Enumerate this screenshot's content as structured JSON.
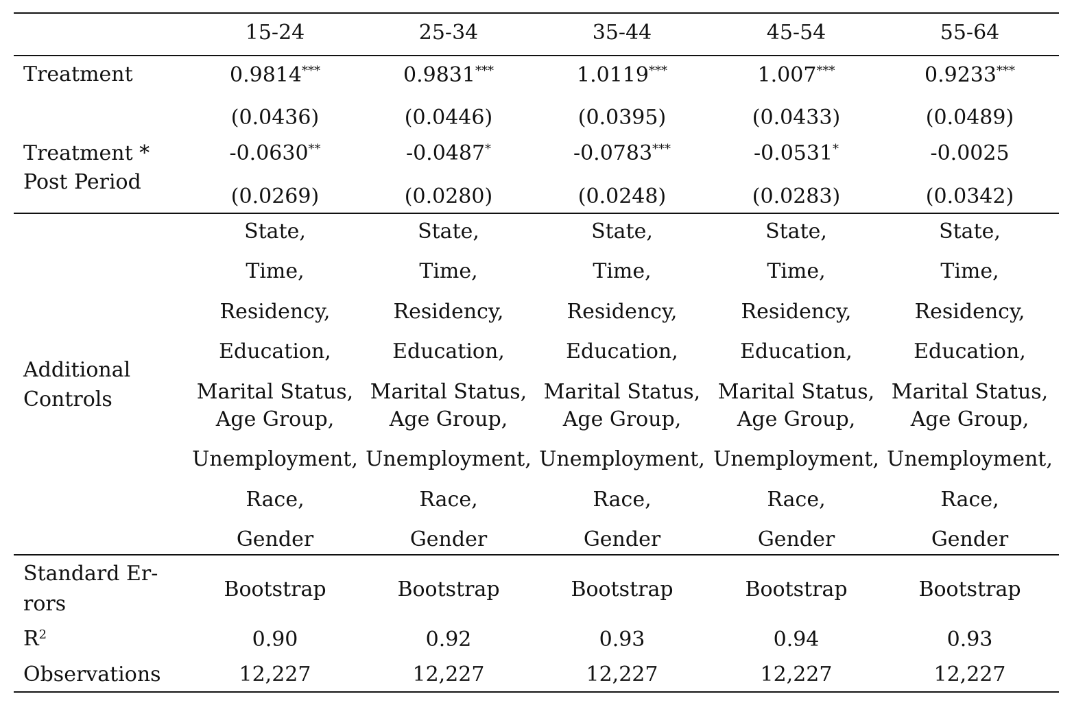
{
  "table": {
    "columns": [
      "15-24",
      "25-34",
      "35-44",
      "45-54",
      "55-64"
    ],
    "rows": {
      "treatment": {
        "label": "Treatment",
        "coefs": [
          "0.9814",
          "0.9831",
          "1.0119",
          "1.007",
          "0.9233"
        ],
        "stars": [
          "***",
          "***",
          "***",
          "***",
          "***"
        ],
        "se": [
          "(0.0436)",
          "(0.0446)",
          "(0.0395)",
          "(0.0433)",
          "(0.0489)"
        ]
      },
      "interaction": {
        "label_line1": "Treatment *",
        "label_line2": "Post Period",
        "coefs": [
          "-0.0630",
          "-0.0487",
          "-0.0783",
          "-0.0531",
          "-0.0025"
        ],
        "stars": [
          "**",
          "*",
          "***",
          "*",
          ""
        ],
        "se": [
          "(0.0269)",
          "(0.0280)",
          "(0.0248)",
          "(0.0283)",
          "(0.0342)"
        ]
      },
      "controls": {
        "label_line1": "Additional",
        "label_line2": "Controls",
        "items": [
          "State,",
          "Time,",
          "Residency,",
          "Education,",
          "Marital Status,",
          "Age Group,",
          "Unemployment,",
          "Race,",
          "Gender"
        ]
      },
      "standard_errors": {
        "label_line1": "Standard Er-",
        "label_line2": "rors",
        "values": [
          "Bootstrap",
          "Bootstrap",
          "Bootstrap",
          "Bootstrap",
          "Bootstrap"
        ]
      },
      "r2": {
        "label": "R",
        "label_sup": "2",
        "values": [
          "0.90",
          "0.92",
          "0.93",
          "0.94",
          "0.93"
        ]
      },
      "observations": {
        "label": "Observations",
        "values": [
          "12,227",
          "12,227",
          "12,227",
          "12,227",
          "12,227"
        ]
      }
    }
  }
}
